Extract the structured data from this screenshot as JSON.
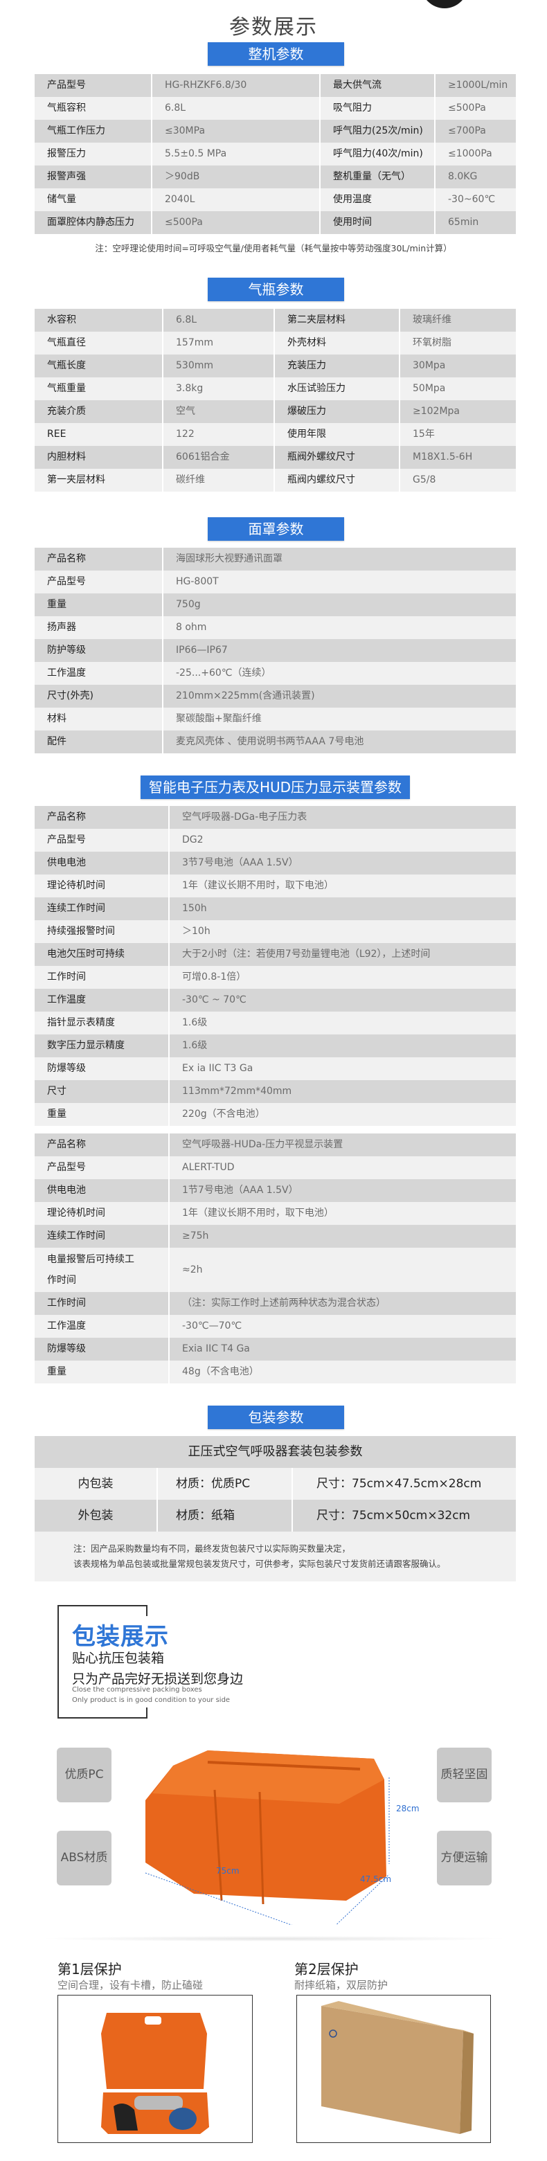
{
  "page_title": "参数展示",
  "colors": {
    "banner": "#2f76d6",
    "row_dark": "#d6d6d6",
    "row_light": "#f1f1f1",
    "heading_blue": "#2f76d6",
    "dimension_blue": "#2f6fd0",
    "case_orange": "#e8661c",
    "carton": "#c49a62"
  },
  "whole_unit": {
    "banner": "整机参数",
    "rows": [
      [
        "产品型号",
        "HG-RHZKF6.8/30",
        "最大供气流",
        "≥1000L/min"
      ],
      [
        "气瓶容积",
        "6.8L",
        "吸气阻力",
        "≤500Pa"
      ],
      [
        "气瓶工作压力",
        "≤30MPa",
        "呼气阻力(25次/min)",
        "≤700Pa"
      ],
      [
        "报警压力",
        "5.5±0.5 MPa",
        "呼气阻力(40次/min)",
        "≤1000Pa"
      ],
      [
        "报警声强",
        "＞90dB",
        "整机重量（无气）",
        "8.0KG"
      ],
      [
        "储气量",
        "2040L",
        "使用温度",
        "-30~60℃"
      ],
      [
        "面罩腔体内静态压力",
        "≤500Pa",
        "使用时间",
        "65min"
      ]
    ],
    "note": "注：空呼理论使用时间=可呼吸空气量/使用者耗气量（耗气量按中等劳动强度30L/min计算）"
  },
  "cylinder": {
    "banner": "气瓶参数",
    "rows": [
      [
        "水容积",
        "6.8L",
        "第二夹层材料",
        "玻璃纤维"
      ],
      [
        "气瓶直径",
        "157mm",
        "外壳材料",
        "环氧树脂"
      ],
      [
        "气瓶长度",
        "530mm",
        "充装压力",
        "30Mpa"
      ],
      [
        "气瓶重量",
        "3.8kg",
        "水压试验压力",
        "50Mpa"
      ],
      [
        "充装介质",
        "空气",
        "爆破压力",
        "≥102Mpa"
      ],
      [
        "REE",
        "122",
        "使用年限",
        "15年"
      ],
      [
        "内胆材料",
        "6061铝合金",
        "瓶阀外螺纹尺寸",
        "M18X1.5-6H"
      ],
      [
        "第一夹层材料",
        "碳纤维",
        "瓶阀内螺纹尺寸",
        "G5/8"
      ]
    ]
  },
  "mask": {
    "banner": "面罩参数",
    "rows": [
      [
        "产品名称",
        "海固球形大视野通讯面罩"
      ],
      [
        "产品型号",
        "HG-800T"
      ],
      [
        "重量",
        "750g"
      ],
      [
        "扬声器",
        "8 ohm"
      ],
      [
        "防护等级",
        "IP66—IP67"
      ],
      [
        "工作温度",
        "-25...+60℃（连续）"
      ],
      [
        "尺寸(外壳)",
        "210mm×225mm(含通讯装置)"
      ],
      [
        "材料",
        "聚碳酸酯+聚酯纤维"
      ],
      [
        "配件",
        "麦克风壳体 、使用说明书两节AAA 7号电池"
      ]
    ]
  },
  "gauge": {
    "banner": "智能电子压力表及HUD压力显示装置参数",
    "dg_rows": [
      [
        "产品名称",
        "空气呼吸器-DGa-电子压力表"
      ],
      [
        "产品型号",
        "DG2"
      ],
      [
        "供电电池",
        "3节7号电池（AAA  1.5V）"
      ],
      [
        "理论待机时间",
        "1年（建议长期不用时，取下电池）"
      ],
      [
        "连续工作时间",
        "150h"
      ],
      [
        "持续强报警时间",
        "＞10h"
      ],
      [
        "电池欠压时可持续",
        "大于2小时（注：若使用7号劲量锂电池（L92），上述时间"
      ],
      [
        "工作时间",
        "可增0.8-1倍）"
      ],
      [
        "工作温度",
        "-30℃ ~ 70℃"
      ],
      [
        "指针显示表精度",
        "1.6级"
      ],
      [
        "数字压力显示精度",
        "1.6级"
      ],
      [
        "防爆等级",
        "Ex ia IIC T3 Ga"
      ],
      [
        "尺寸",
        "113mm*72mm*40mm"
      ],
      [
        "重量",
        "220g（不含电池）"
      ]
    ],
    "hud_rows": [
      [
        "产品名称",
        "空气呼吸器-HUDa-压力平视显示装置"
      ],
      [
        "产品型号",
        "ALERT-TUD"
      ],
      [
        "供电电池",
        "1节7号电池（AAA  1.5V）"
      ],
      [
        "理论待机时间",
        "1年（建议长期不用时，取下电池）"
      ],
      [
        "连续工作时间",
        "≥75h"
      ],
      [
        "电量报警后可持续工作时间",
        "≈2h"
      ],
      [
        "工作时间",
        "（注：实际工作时上述前两种状态为混合状态）"
      ],
      [
        "工作温度",
        "-30℃—70℃"
      ],
      [
        "防爆等级",
        "Exia IIC T4 Ga"
      ],
      [
        "重量",
        "48g（不含电池）"
      ]
    ]
  },
  "packaging": {
    "banner": "包装参数",
    "header": "正压式空气呼吸器套装包装参数",
    "rows": [
      [
        "内包装",
        "材质：优质PC",
        "尺寸：75cm×47.5cm×28cm"
      ],
      [
        "外包装",
        "材质：纸箱",
        "尺寸：75cm×50cm×32cm"
      ]
    ],
    "note_lines": [
      "注：因产品采购数量均有不同，最终发货包装尺寸以实际购买数量决定，",
      "该表规格为单品包装或批量常规包装发货尺寸，可供参考，实际包装尺寸发货前还请跟客服确认。"
    ]
  },
  "showcase": {
    "heading": "包装展示",
    "sub1": "贴心抗压包装箱",
    "sub2": "只为产品完好无损送到您身边",
    "en1": "Close the compressive packing boxes",
    "en2": "Only product is in good condition to your side",
    "badges": [
      "优质PC",
      "ABS材质",
      "质轻坚固",
      "方便运输"
    ],
    "dims": {
      "height": "28cm",
      "length": "75cm",
      "width": "47.5cm"
    }
  },
  "layers": [
    {
      "title": "第1层保护",
      "sub": "空间合理，设有卡槽，防止磕碰"
    },
    {
      "title": "第2层保护",
      "sub": "耐摔纸箱，双层防护"
    }
  ]
}
